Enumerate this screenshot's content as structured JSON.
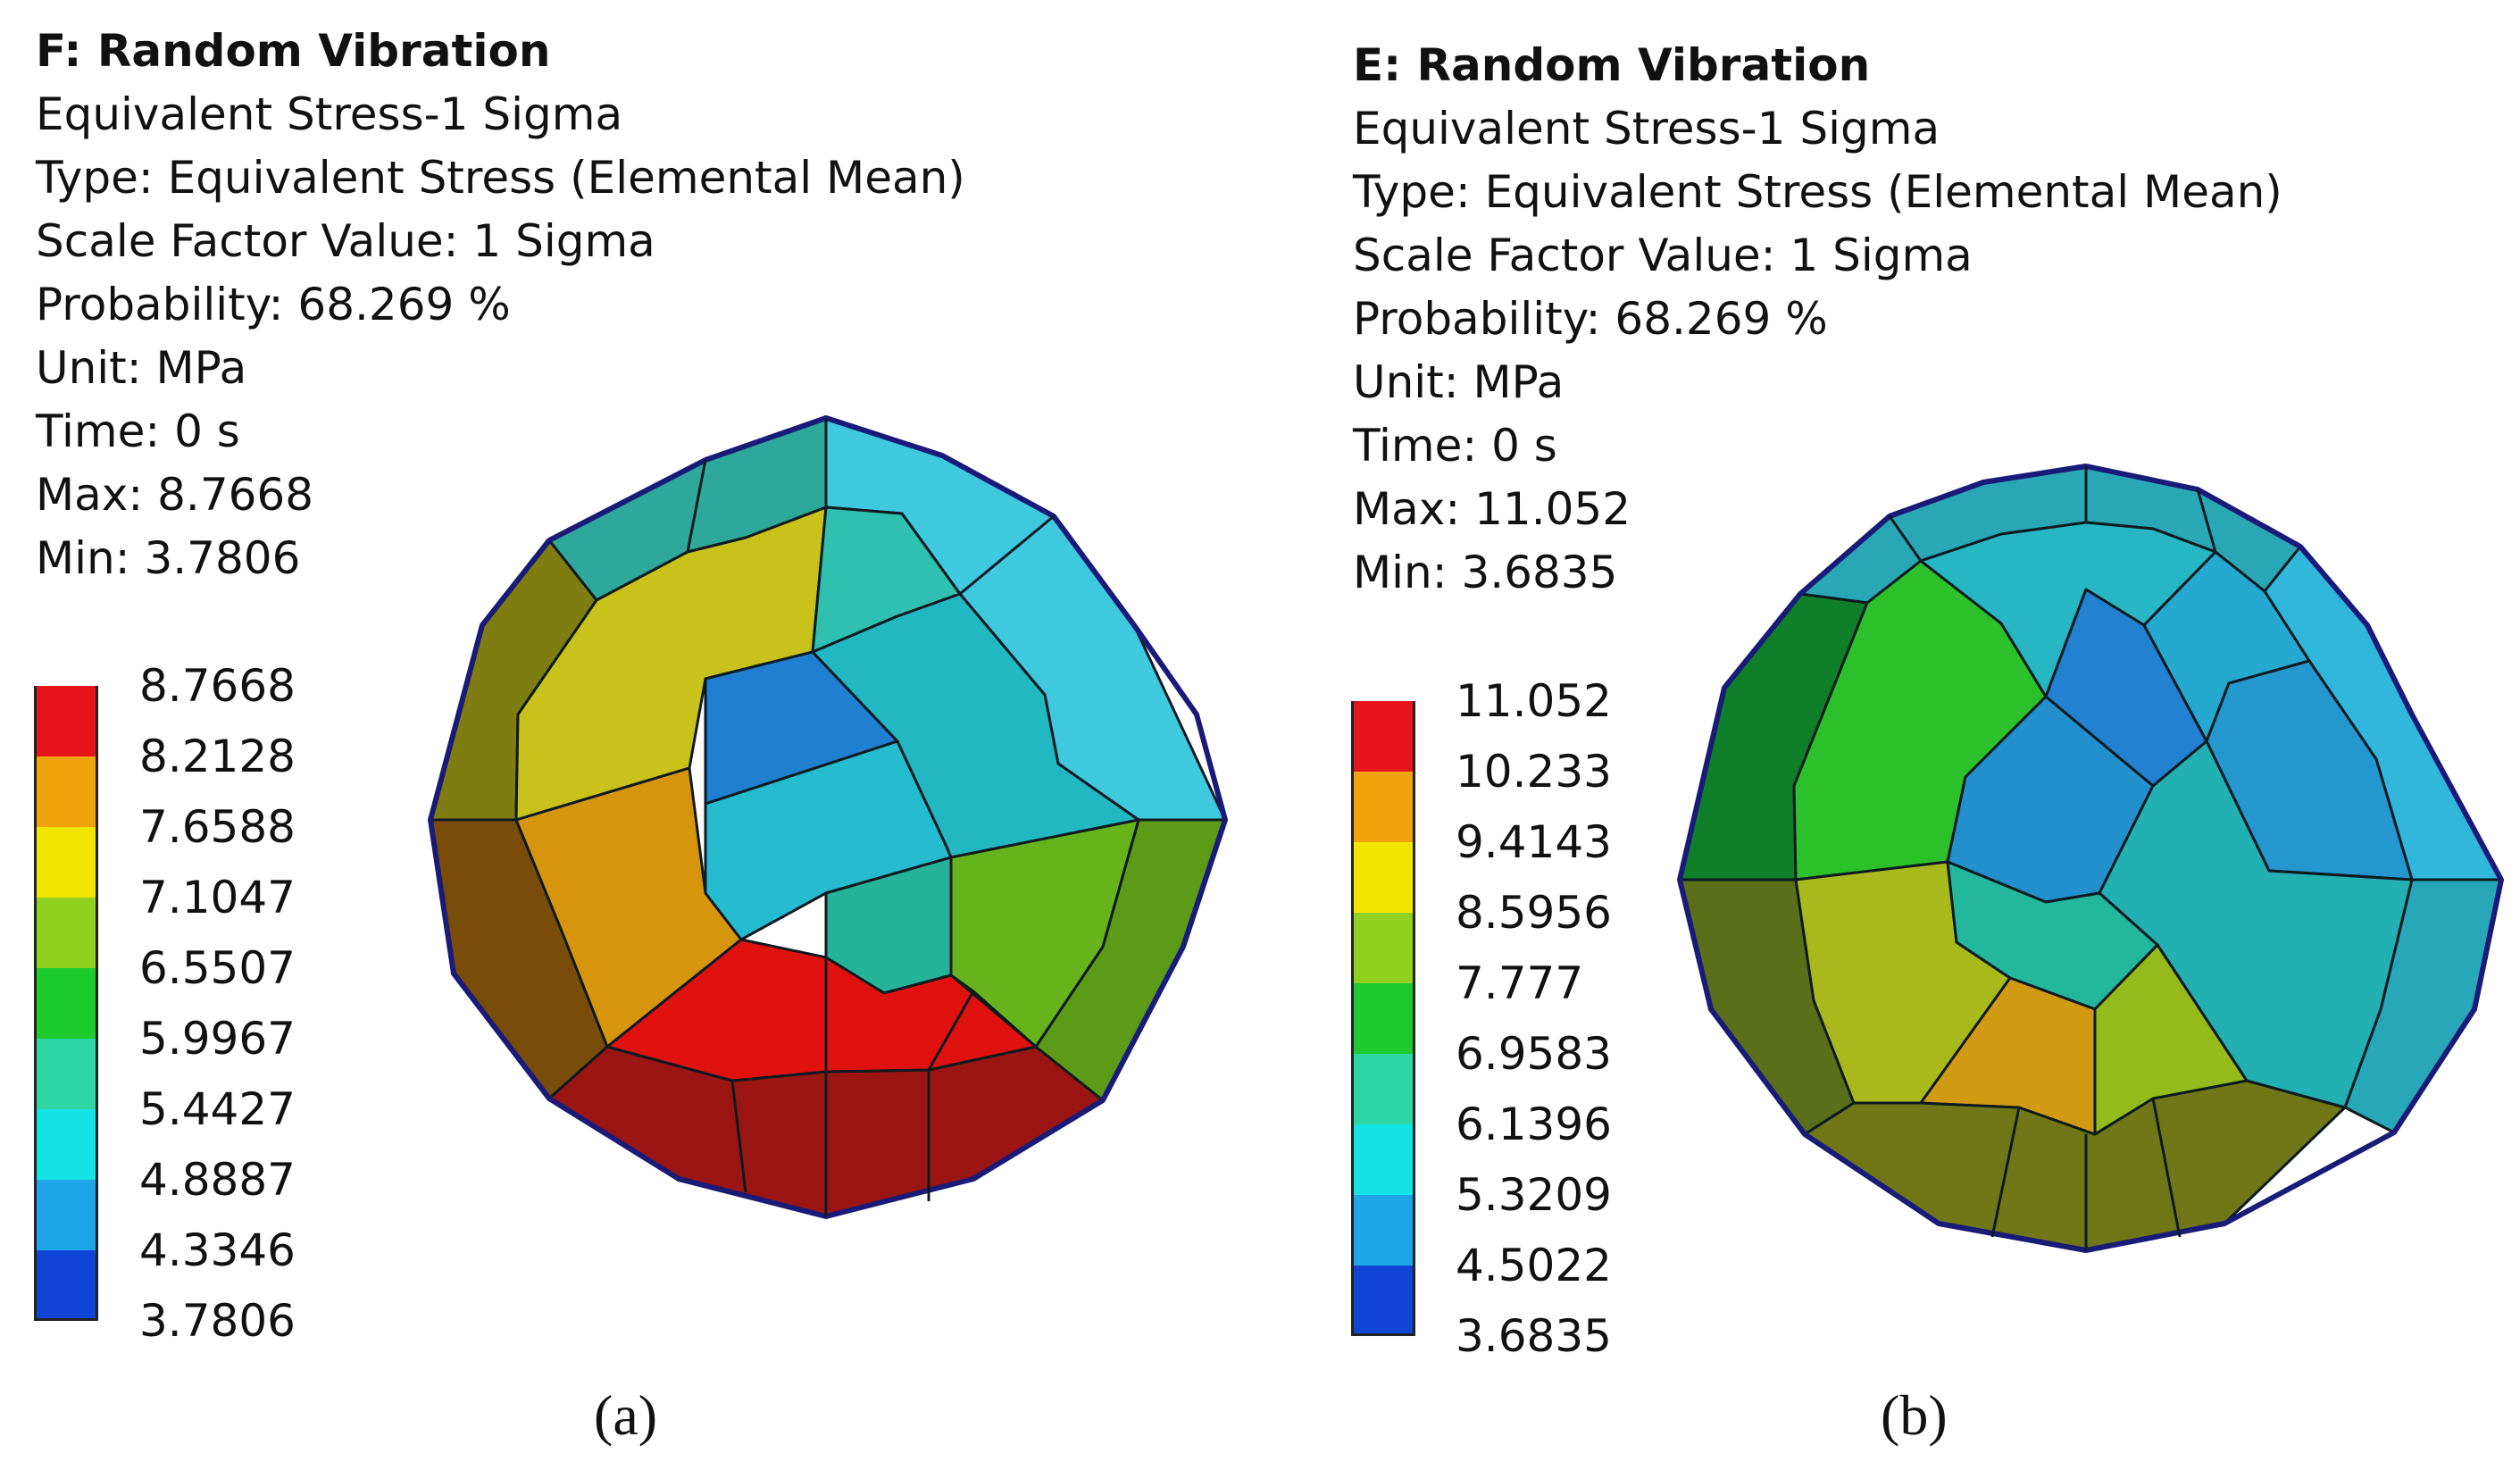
{
  "panels": [
    {
      "id": "a",
      "title": "F: Random Vibration",
      "result_name": "Equivalent Stress-1 Sigma",
      "type_line": "Type: Equivalent Stress (Elemental Mean)",
      "scale_line": "Scale Factor Value: 1 Sigma",
      "probability_line": "Probability: 68.269 %",
      "unit_line": "Unit: MPa",
      "time_line": "Time: 0 s",
      "max_line": "Max: 8.7668",
      "min_line": "Min: 3.7806",
      "legend_ticks": [
        "8.7668",
        "8.2128",
        "7.6588",
        "7.1047",
        "6.5507",
        "5.9967",
        "5.4427",
        "4.8887",
        "4.3346",
        "3.7806"
      ],
      "caption": "(a)"
    },
    {
      "id": "b",
      "title": "E: Random Vibration",
      "result_name": "Equivalent Stress-1 Sigma",
      "type_line": "Type: Equivalent Stress (Elemental Mean)",
      "scale_line": "Scale Factor Value: 1 Sigma",
      "probability_line": "Probability: 68.269 %",
      "unit_line": "Unit: MPa",
      "time_line": "Time: 0 s",
      "max_line": "Max: 11.052",
      "min_line": "Min: 3.6835",
      "legend_ticks": [
        "11.052",
        "10.233",
        "9.4143",
        "8.5956",
        "7.777",
        "6.9583",
        "6.1396",
        "5.3209",
        "4.5022",
        "3.6835"
      ],
      "caption": "(b)"
    }
  ],
  "legend_colors": [
    "#e8141b",
    "#f0a30a",
    "#f2e600",
    "#8fd11e",
    "#1ecb2e",
    "#2ed6a4",
    "#14e3e6",
    "#1fa6e8",
    "#1044d6",
    "#0000d8"
  ]
}
